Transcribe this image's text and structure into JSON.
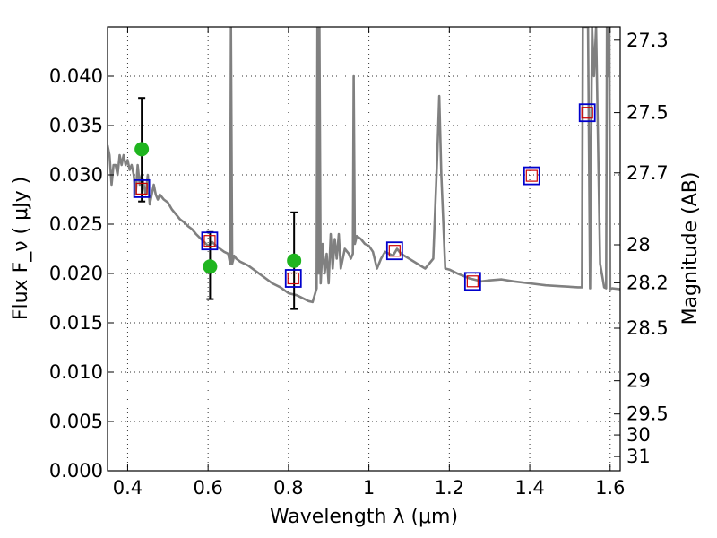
{
  "chart_data": {
    "type": "scatter",
    "xlabel": "Wavelength  λ (μm)",
    "ylabel": "Flux  F_ν  ( μJy )",
    "y2label": "Magnitude (AB)",
    "xlim": [
      0.35,
      1.625
    ],
    "ylim": [
      0.0,
      0.045
    ],
    "grid": true,
    "x_ticks": [
      0.4,
      0.6,
      0.8,
      1.0,
      1.2,
      1.4,
      1.6
    ],
    "x_tick_labels": [
      "0.4",
      "0.6",
      "0.8",
      "1",
      "1.2",
      "1.4",
      "1.6"
    ],
    "y_ticks": [
      0.0,
      0.005,
      0.01,
      0.015,
      0.02,
      0.025,
      0.03,
      0.035,
      0.04
    ],
    "y_tick_labels": [
      "0.000",
      "0.005",
      "0.010",
      "0.015",
      "0.020",
      "0.025",
      "0.030",
      "0.035",
      "0.040"
    ],
    "y2_ticks": [
      27.3,
      27.5,
      27.7,
      28,
      28.2,
      28.5,
      29,
      29.5,
      30,
      31
    ],
    "y2_tick_labels": [
      "27.3",
      "27.5",
      "27.7",
      "28",
      "28.2",
      "28.5",
      "29",
      "29.5",
      "30",
      "31"
    ],
    "colors": {
      "model": "#808080",
      "observed": "#1fb51f",
      "model_band_outer": "#0000cc",
      "model_band_inner": "#cc0000",
      "error_bar": "#000000"
    },
    "model_spectrum": {
      "x": [
        0.35,
        0.355,
        0.36,
        0.365,
        0.37,
        0.375,
        0.38,
        0.385,
        0.39,
        0.395,
        0.4,
        0.405,
        0.41,
        0.415,
        0.42,
        0.425,
        0.43,
        0.435,
        0.44,
        0.445,
        0.45,
        0.455,
        0.46,
        0.465,
        0.47,
        0.475,
        0.48,
        0.49,
        0.5,
        0.51,
        0.52,
        0.53,
        0.54,
        0.55,
        0.56,
        0.57,
        0.58,
        0.59,
        0.6,
        0.61,
        0.62,
        0.63,
        0.64,
        0.65,
        0.655,
        0.657,
        0.66,
        0.665,
        0.67,
        0.68,
        0.7,
        0.72,
        0.74,
        0.76,
        0.78,
        0.8,
        0.82,
        0.84,
        0.85,
        0.86,
        0.87,
        0.872,
        0.875,
        0.877,
        0.88,
        0.885,
        0.89,
        0.895,
        0.9,
        0.905,
        0.91,
        0.915,
        0.92,
        0.925,
        0.93,
        0.94,
        0.95,
        0.955,
        0.96,
        0.962,
        0.965,
        0.97,
        0.98,
        0.99,
        1.0,
        1.01,
        1.02,
        1.03,
        1.04,
        1.05,
        1.06,
        1.07,
        1.08,
        1.1,
        1.12,
        1.14,
        1.16,
        1.17,
        1.175,
        1.18,
        1.19,
        1.2,
        1.22,
        1.25,
        1.28,
        1.3,
        1.33,
        1.36,
        1.4,
        1.44,
        1.48,
        1.52,
        1.53,
        1.532,
        1.535,
        1.54,
        1.545,
        1.55,
        1.555,
        1.56,
        1.565,
        1.575,
        1.585,
        1.59,
        1.592,
        1.595,
        1.598,
        1.6,
        1.605,
        1.625
      ],
      "y": [
        0.033,
        0.032,
        0.029,
        0.031,
        0.031,
        0.03,
        0.032,
        0.031,
        0.032,
        0.031,
        0.0315,
        0.0305,
        0.031,
        0.03,
        0.028,
        0.031,
        0.029,
        0.03,
        0.029,
        0.028,
        0.03,
        0.027,
        0.028,
        0.029,
        0.028,
        0.0275,
        0.028,
        0.0275,
        0.0272,
        0.0265,
        0.026,
        0.0255,
        0.0252,
        0.0248,
        0.0245,
        0.024,
        0.0236,
        0.0232,
        0.0228,
        0.0232,
        0.0228,
        0.0225,
        0.0222,
        0.022,
        0.021,
        0.045,
        0.021,
        0.0218,
        0.0215,
        0.0212,
        0.0208,
        0.0202,
        0.0196,
        0.019,
        0.0186,
        0.018,
        0.0178,
        0.0174,
        0.0172,
        0.0171,
        0.0185,
        0.045,
        0.02,
        0.045,
        0.019,
        0.023,
        0.02,
        0.022,
        0.019,
        0.024,
        0.0205,
        0.0235,
        0.0215,
        0.024,
        0.0205,
        0.0225,
        0.022,
        0.0215,
        0.022,
        0.04,
        0.023,
        0.0238,
        0.0235,
        0.023,
        0.0228,
        0.0222,
        0.0205,
        0.0215,
        0.0222,
        0.022,
        0.0218,
        0.0225,
        0.022,
        0.0215,
        0.021,
        0.0205,
        0.0215,
        0.032,
        0.038,
        0.03,
        0.0205,
        0.0204,
        0.02,
        0.0195,
        0.0192,
        0.0193,
        0.0194,
        0.0192,
        0.019,
        0.0188,
        0.0187,
        0.0186,
        0.0186,
        0.045,
        0.045,
        0.045,
        0.045,
        0.0185,
        0.045,
        0.04,
        0.045,
        0.021,
        0.0186,
        0.0185,
        0.045,
        0.04,
        0.045,
        0.0184,
        0.0185,
        0.0184
      ]
    },
    "observed": {
      "x": [
        0.435,
        0.605,
        0.814
      ],
      "y": [
        0.0326,
        0.0207,
        0.0213
      ],
      "err_low": [
        0.0273,
        0.0174,
        0.0164
      ],
      "err_high": [
        0.0378,
        0.0242,
        0.0262
      ]
    },
    "model_bands": {
      "x": [
        0.435,
        0.604,
        0.812,
        1.064,
        1.258,
        1.405,
        1.543
      ],
      "y": [
        0.0286,
        0.0233,
        0.0195,
        0.0223,
        0.0192,
        0.0299,
        0.0363
      ]
    }
  }
}
